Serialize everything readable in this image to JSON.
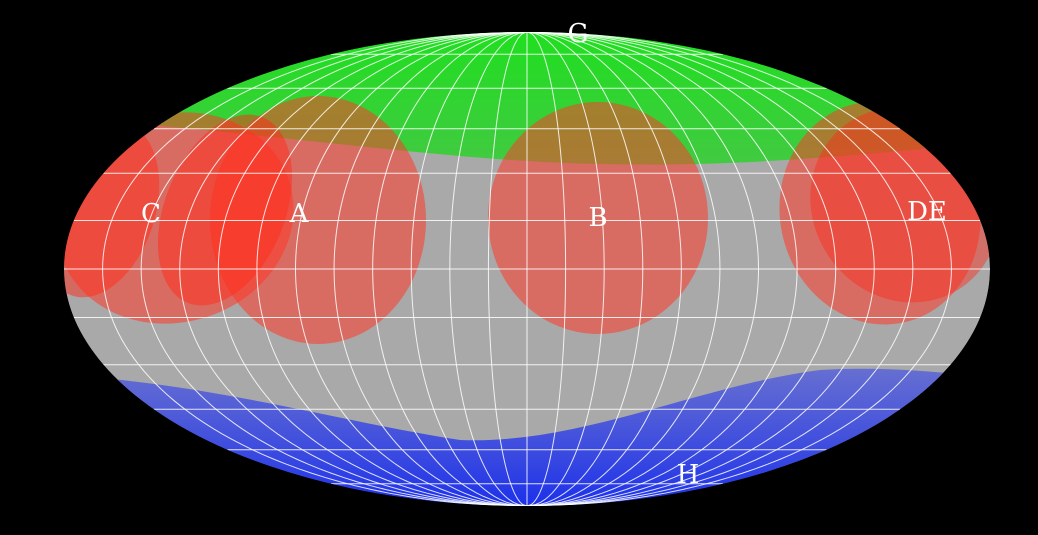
{
  "projection": "mollweide",
  "grid": {
    "meridian_step_deg": 15,
    "parallel_step_deg": 15,
    "color": "#ffffff"
  },
  "colors": {
    "background": "#000000",
    "sky": "#aaaaaa",
    "north_cap": "#22d022",
    "south_cap": "#1a2ee0",
    "region": "#ff2a1a",
    "region_overlap": "#e02010",
    "label": "#ffffff"
  },
  "labels": {
    "A": "A",
    "B": "B",
    "C": "C",
    "DE": "DE",
    "G": "G",
    "H": "H"
  }
}
